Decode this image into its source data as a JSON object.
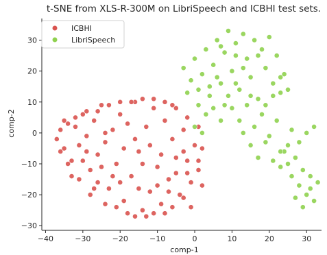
{
  "chart_data": {
    "type": "scatter",
    "title": "t-SNE from XLS-R-300M on LibriSpeech and ICBHI test sets.",
    "xlabel": "comp-1",
    "ylabel": "comp-2",
    "xlim": [
      -41,
      34
    ],
    "ylim": [
      -31.5,
      37
    ],
    "xticks": [
      -40,
      -30,
      -20,
      -10,
      0,
      10,
      20,
      30
    ],
    "yticks": [
      -30,
      -20,
      -10,
      0,
      10,
      20,
      30
    ],
    "xtick_labels": [
      "−40",
      "−30",
      "−20",
      "−10",
      "0",
      "10",
      "20",
      "30"
    ],
    "ytick_labels": [
      "−30",
      "−20",
      "−10",
      "0",
      "10",
      "20",
      "30"
    ],
    "grid": false,
    "legend_position": "top-left",
    "series": [
      {
        "name": "ICBHI",
        "color": "#d9534f",
        "note_regions": "dense cluster spanning comp-1 -38..3, comp-2 -28..12",
        "points": [
          [
            -37,
            -2
          ],
          [
            -36,
            1
          ],
          [
            -35,
            -5
          ],
          [
            -34,
            3
          ],
          [
            -33,
            -9
          ],
          [
            -32,
            2
          ],
          [
            -31,
            -4
          ],
          [
            -30,
            6
          ],
          [
            -29,
            -1
          ],
          [
            -28,
            -12
          ],
          [
            -27,
            4
          ],
          [
            -26,
            -7
          ],
          [
            -25,
            9
          ],
          [
            -24,
            -3
          ],
          [
            -23,
            -18
          ],
          [
            -22,
            1
          ],
          [
            -21,
            -10
          ],
          [
            -20,
            6
          ],
          [
            -19,
            -22
          ],
          [
            -18,
            3
          ],
          [
            -17,
            -14
          ],
          [
            -16,
            10
          ],
          [
            -15,
            -6
          ],
          [
            -14,
            -25
          ],
          [
            -13,
            2
          ],
          [
            -12,
            -19
          ],
          [
            -11,
            8
          ],
          [
            -10,
            -11
          ],
          [
            -9,
            -23
          ],
          [
            -8,
            4
          ],
          [
            -7,
            -15
          ],
          [
            -6,
            9
          ],
          [
            -5,
            -8
          ],
          [
            -4,
            -20
          ],
          [
            -3,
            1
          ],
          [
            -2,
            -13
          ],
          [
            -1,
            -24
          ],
          [
            0,
            -4
          ],
          [
            1,
            -9
          ],
          [
            2,
            -17
          ],
          [
            -36,
            -6
          ],
          [
            -33,
            -14
          ],
          [
            -30,
            -9
          ],
          [
            -28,
            -20
          ],
          [
            -26,
            -16
          ],
          [
            -24,
            -23
          ],
          [
            -21,
            -24
          ],
          [
            -18,
            -26
          ],
          [
            -16,
            -27
          ],
          [
            -13,
            -27
          ],
          [
            -11,
            -26
          ],
          [
            -8,
            -26
          ],
          [
            -6,
            -24
          ],
          [
            -3,
            -21
          ],
          [
            -1,
            -16
          ],
          [
            1,
            -12
          ],
          [
            2,
            -5
          ],
          [
            1,
            2
          ],
          [
            -2,
            5
          ],
          [
            -5,
            8
          ],
          [
            -8,
            10
          ],
          [
            -11,
            11
          ],
          [
            -14,
            11
          ],
          [
            -17,
            10
          ],
          [
            -20,
            10
          ],
          [
            -23,
            9
          ],
          [
            -26,
            7
          ],
          [
            -29,
            7
          ],
          [
            -32,
            5
          ],
          [
            -35,
            4
          ],
          [
            -34,
            -10
          ],
          [
            -31,
            -15
          ],
          [
            -27,
            -18
          ],
          [
            -22,
            -14
          ],
          [
            -19,
            -5
          ],
          [
            -16,
            -2
          ],
          [
            -12,
            -4
          ],
          [
            -9,
            -7
          ],
          [
            -6,
            -2
          ],
          [
            -3,
            -6
          ],
          [
            -25,
            -11
          ],
          [
            -20,
            -16
          ],
          [
            -15,
            -18
          ],
          [
            -10,
            -17
          ],
          [
            -5,
            -13
          ],
          [
            -2,
            -9
          ],
          [
            -29,
            -6
          ],
          [
            -24,
            0
          ],
          [
            -14,
            -10
          ],
          [
            -7,
            -19
          ]
        ]
      },
      {
        "name": "LibriSpeech",
        "color": "#8fd14f",
        "note_regions": "elongated cluster from comp-1 -4..33, comp-2 -25..34",
        "points": [
          [
            -3,
            21
          ],
          [
            -1,
            17
          ],
          [
            0,
            24
          ],
          [
            1,
            14
          ],
          [
            2,
            19
          ],
          [
            3,
            27
          ],
          [
            4,
            12
          ],
          [
            5,
            22
          ],
          [
            6,
            30
          ],
          [
            7,
            16
          ],
          [
            8,
            26
          ],
          [
            9,
            33
          ],
          [
            10,
            20
          ],
          [
            11,
            29
          ],
          [
            12,
            14
          ],
          [
            13,
            32
          ],
          [
            14,
            24
          ],
          [
            15,
            18
          ],
          [
            16,
            30
          ],
          [
            17,
            11
          ],
          [
            18,
            27
          ],
          [
            19,
            21
          ],
          [
            20,
            31
          ],
          [
            21,
            16
          ],
          [
            22,
            25
          ],
          [
            23,
            13
          ],
          [
            24,
            19
          ],
          [
            25,
            14
          ],
          [
            10,
            8
          ],
          [
            12,
            4
          ],
          [
            14,
            9
          ],
          [
            16,
            2
          ],
          [
            18,
            6
          ],
          [
            20,
            -1
          ],
          [
            22,
            4
          ],
          [
            24,
            -6
          ],
          [
            26,
            1
          ],
          [
            28,
            -3
          ],
          [
            30,
            0
          ],
          [
            32,
            2
          ],
          [
            13,
            0
          ],
          [
            15,
            -4
          ],
          [
            17,
            -8
          ],
          [
            19,
            -3
          ],
          [
            21,
            -9
          ],
          [
            23,
            -11
          ],
          [
            25,
            -4
          ],
          [
            27,
            -8
          ],
          [
            29,
            -12
          ],
          [
            31,
            -14
          ],
          [
            26,
            -14
          ],
          [
            28,
            -17
          ],
          [
            30,
            -20
          ],
          [
            32,
            -22
          ],
          [
            27,
            -21
          ],
          [
            29,
            -24
          ],
          [
            31,
            -18
          ],
          [
            33,
            -16
          ],
          [
            25,
            -10
          ],
          [
            23,
            -6
          ],
          [
            5,
            8
          ],
          [
            7,
            4
          ],
          [
            3,
            6
          ],
          [
            0,
            2
          ],
          [
            2,
            0
          ],
          [
            9,
            12
          ],
          [
            11,
            16
          ],
          [
            6,
            18
          ],
          [
            4,
            15
          ],
          [
            8,
            9
          ],
          [
            1,
            9
          ],
          [
            -2,
            13
          ],
          [
            15,
            12
          ],
          [
            19,
            9
          ],
          [
            21,
            12
          ],
          [
            23,
            18
          ],
          [
            17,
            25
          ],
          [
            13,
            21
          ],
          [
            11,
            25
          ],
          [
            7,
            28
          ]
        ]
      }
    ]
  }
}
